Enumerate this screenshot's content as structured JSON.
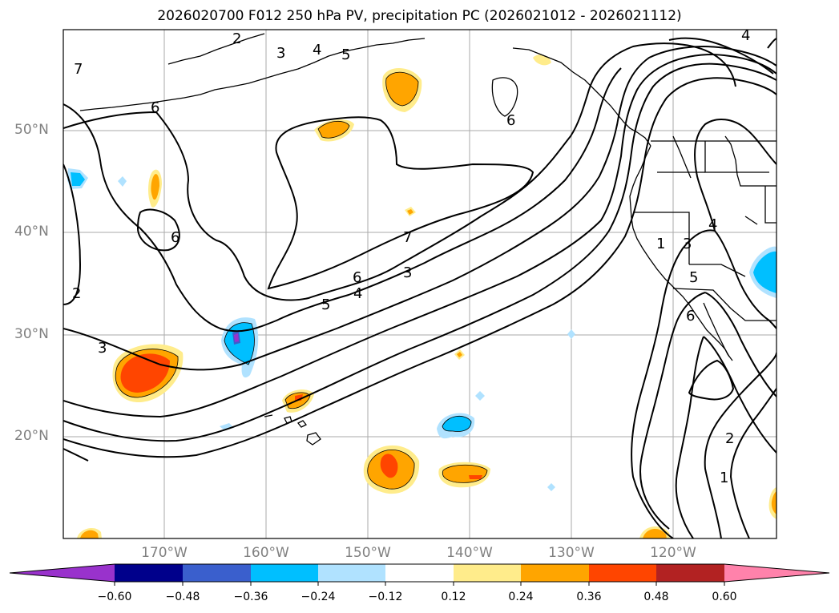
{
  "figure": {
    "title": "2026020700 F012 250 hPa PV, precipitation PC (2026021012 - 2026021112)",
    "latitude_labels": [
      "50°N",
      "40°N",
      "30°N",
      "20°N"
    ],
    "longitude_labels": [
      "170°W",
      "160°W",
      "150°W",
      "140°W",
      "130°W",
      "120°W"
    ],
    "contour_labels": [
      "2",
      "3",
      "4",
      "5",
      "6",
      "7",
      "6",
      "6",
      "2",
      "3",
      "7",
      "5",
      "4",
      "6",
      "3",
      "1",
      "3",
      "5",
      "6",
      "4",
      "2",
      "1",
      "4"
    ]
  },
  "colorbar": {
    "tick_labels": [
      "−0.60",
      "−0.48",
      "−0.36",
      "−0.24",
      "−0.12",
      "0.12",
      "0.24",
      "0.36",
      "0.48",
      "0.60"
    ],
    "colors": [
      "#9932cc",
      "#00008b",
      "#3a5fcd",
      "#00bfff",
      "#b0e2ff",
      "#ffffff",
      "#ffec8b",
      "#ffa500",
      "#ff4500",
      "#b22222",
      "#ff82ab"
    ]
  },
  "colors": {
    "gridline": "#aaaaaa",
    "coastline": "#000000",
    "contour": "#000000",
    "axis_label": "#808080"
  }
}
